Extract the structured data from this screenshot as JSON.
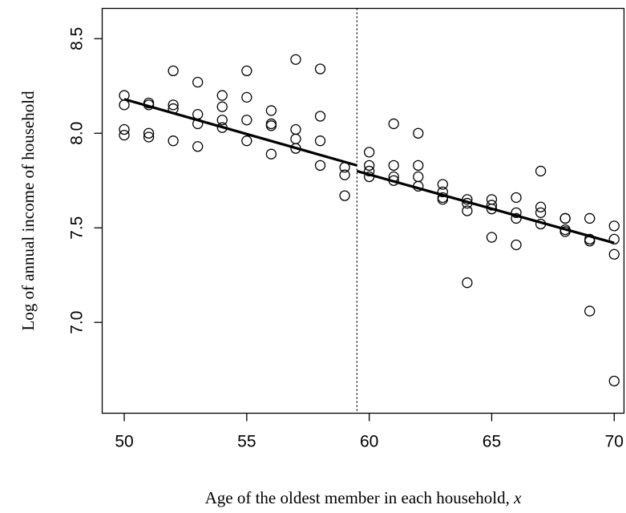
{
  "chart_data": {
    "type": "scatter",
    "title": "",
    "xlabel": "Age of the oldest member in each household, x",
    "ylabel": "Log of annual income of household",
    "xlim": [
      49.1,
      70.4
    ],
    "ylim": [
      6.52,
      8.66
    ],
    "x_ticks": [
      50,
      55,
      60,
      65,
      70
    ],
    "y_ticks": [
      7.0,
      7.5,
      8.0,
      8.5
    ],
    "x_tick_labels": [
      "50",
      "55",
      "60",
      "65",
      "70"
    ],
    "y_tick_labels": [
      "7.0",
      "7.5",
      "8.0",
      "8.5"
    ],
    "grid": false,
    "legend": "none",
    "cutoff_line": {
      "x": 59.5,
      "style": "dotted"
    },
    "fit_lines": [
      {
        "x": [
          50,
          59.5
        ],
        "y": [
          8.18,
          7.83
        ]
      },
      {
        "x": [
          59.5,
          70
        ],
        "y": [
          7.8,
          7.42
        ]
      }
    ],
    "points": [
      {
        "x": 50,
        "y": 8.2
      },
      {
        "x": 50,
        "y": 8.15
      },
      {
        "x": 50,
        "y": 8.02
      },
      {
        "x": 50,
        "y": 7.99
      },
      {
        "x": 51,
        "y": 8.16
      },
      {
        "x": 51,
        "y": 8.15
      },
      {
        "x": 51,
        "y": 8.0
      },
      {
        "x": 51,
        "y": 7.98
      },
      {
        "x": 52,
        "y": 8.33
      },
      {
        "x": 52,
        "y": 8.15
      },
      {
        "x": 52,
        "y": 8.13
      },
      {
        "x": 52,
        "y": 7.96
      },
      {
        "x": 53,
        "y": 8.27
      },
      {
        "x": 53,
        "y": 8.1
      },
      {
        "x": 53,
        "y": 8.05
      },
      {
        "x": 53,
        "y": 7.93
      },
      {
        "x": 54,
        "y": 8.2
      },
      {
        "x": 54,
        "y": 8.14
      },
      {
        "x": 54,
        "y": 8.07
      },
      {
        "x": 54,
        "y": 8.03
      },
      {
        "x": 55,
        "y": 8.33
      },
      {
        "x": 55,
        "y": 8.19
      },
      {
        "x": 55,
        "y": 8.07
      },
      {
        "x": 55,
        "y": 7.96
      },
      {
        "x": 56,
        "y": 8.12
      },
      {
        "x": 56,
        "y": 8.05
      },
      {
        "x": 56,
        "y": 8.04
      },
      {
        "x": 56,
        "y": 7.89
      },
      {
        "x": 57,
        "y": 8.39
      },
      {
        "x": 57,
        "y": 8.02
      },
      {
        "x": 57,
        "y": 7.97
      },
      {
        "x": 57,
        "y": 7.92
      },
      {
        "x": 58,
        "y": 8.34
      },
      {
        "x": 58,
        "y": 8.09
      },
      {
        "x": 58,
        "y": 7.96
      },
      {
        "x": 58,
        "y": 7.83
      },
      {
        "x": 59,
        "y": 7.82
      },
      {
        "x": 59,
        "y": 7.78
      },
      {
        "x": 59,
        "y": 7.67
      },
      {
        "x": 60,
        "y": 7.9
      },
      {
        "x": 60,
        "y": 7.83
      },
      {
        "x": 60,
        "y": 7.8
      },
      {
        "x": 60,
        "y": 7.77
      },
      {
        "x": 61,
        "y": 8.05
      },
      {
        "x": 61,
        "y": 7.83
      },
      {
        "x": 61,
        "y": 7.77
      },
      {
        "x": 61,
        "y": 7.75
      },
      {
        "x": 62,
        "y": 8.0
      },
      {
        "x": 62,
        "y": 7.83
      },
      {
        "x": 62,
        "y": 7.77
      },
      {
        "x": 62,
        "y": 7.72
      },
      {
        "x": 63,
        "y": 7.73
      },
      {
        "x": 63,
        "y": 7.69
      },
      {
        "x": 63,
        "y": 7.66
      },
      {
        "x": 63,
        "y": 7.65
      },
      {
        "x": 64,
        "y": 7.65
      },
      {
        "x": 64,
        "y": 7.63
      },
      {
        "x": 64,
        "y": 7.59
      },
      {
        "x": 64,
        "y": 7.21
      },
      {
        "x": 65,
        "y": 7.65
      },
      {
        "x": 65,
        "y": 7.62
      },
      {
        "x": 65,
        "y": 7.6
      },
      {
        "x": 65,
        "y": 7.45
      },
      {
        "x": 66,
        "y": 7.66
      },
      {
        "x": 66,
        "y": 7.58
      },
      {
        "x": 66,
        "y": 7.55
      },
      {
        "x": 66,
        "y": 7.41
      },
      {
        "x": 67,
        "y": 7.8
      },
      {
        "x": 67,
        "y": 7.61
      },
      {
        "x": 67,
        "y": 7.58
      },
      {
        "x": 67,
        "y": 7.52
      },
      {
        "x": 68,
        "y": 7.55
      },
      {
        "x": 68,
        "y": 7.55
      },
      {
        "x": 68,
        "y": 7.49
      },
      {
        "x": 68,
        "y": 7.48
      },
      {
        "x": 69,
        "y": 7.55
      },
      {
        "x": 69,
        "y": 7.44
      },
      {
        "x": 69,
        "y": 7.43
      },
      {
        "x": 69,
        "y": 7.06
      },
      {
        "x": 70,
        "y": 7.51
      },
      {
        "x": 70,
        "y": 7.44
      },
      {
        "x": 70,
        "y": 7.36
      },
      {
        "x": 70,
        "y": 6.69
      }
    ]
  }
}
